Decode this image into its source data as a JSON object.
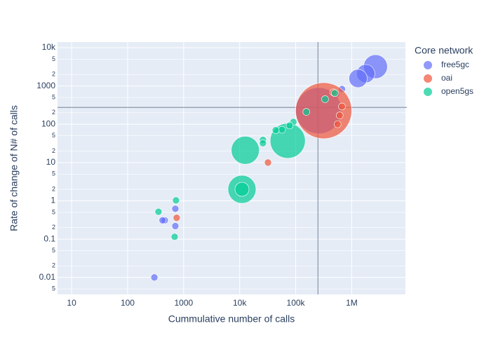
{
  "chart_data": {
    "type": "scatter",
    "x_label": "Cummulative number of calls",
    "y_label": "Rate of change of N# of calls",
    "x_log": true,
    "y_log": true,
    "grid": true,
    "legend_title": "Core network",
    "legend_position": "right",
    "xlim": [
      5.6,
      9100000
    ],
    "ylim": [
      0.0036,
      14000
    ],
    "xticks": [
      10,
      100,
      1000,
      {
        "value": 10000,
        "label": "10k"
      },
      {
        "value": 100000,
        "label": "100k"
      },
      {
        "value": 1000000,
        "label": "1M"
      }
    ],
    "yticks": [
      {
        "value": 10000,
        "label": "10k"
      },
      {
        "value": 5000,
        "label": "5"
      },
      {
        "value": 2000,
        "label": "2"
      },
      1000,
      {
        "value": 500,
        "label": "5"
      },
      {
        "value": 200,
        "label": "2"
      },
      100,
      {
        "value": 50,
        "label": "5"
      },
      {
        "value": 20,
        "label": "2"
      },
      10,
      {
        "value": 5,
        "label": "5"
      },
      {
        "value": 2,
        "label": "2"
      },
      1,
      {
        "value": 0.5,
        "label": "5"
      },
      {
        "value": 0.2,
        "label": "2"
      },
      0.1,
      {
        "value": 0.05,
        "label": "5"
      },
      {
        "value": 0.02,
        "label": "2"
      },
      0.01,
      {
        "value": 0.005,
        "label": "5"
      }
    ],
    "vline": 250000,
    "hline": 275,
    "series": [
      {
        "name": "free5gc",
        "color": "#636efa",
        "x": [
          2660000,
          1780000,
          1300000,
          670000,
          530000,
          257000,
          710,
          460,
          420,
          710,
          300
        ],
        "y": [
          3200,
          2100,
          1570,
          830,
          600,
          226,
          0.62,
          0.31,
          0.31,
          0.22,
          0.01
        ],
        "sizes": [
          34,
          26,
          26,
          10,
          10,
          66,
          10,
          10,
          10,
          10,
          10
        ]
      },
      {
        "name": "oai",
        "color": "#ef553b",
        "x": [
          316000,
          670000,
          610000,
          560000,
          470000,
          32000,
          750
        ],
        "y": [
          226,
          290,
          170,
          100,
          680,
          10,
          0.36
        ],
        "sizes": [
          80,
          10,
          10,
          10,
          10,
          10,
          10
        ]
      },
      {
        "name": "open5gs",
        "color": "#00cc96",
        "x": [
          72000,
          12600,
          11000,
          11000,
          500000,
          335000,
          155000,
          91000,
          78000,
          57000,
          44000,
          26000,
          26000,
          730,
          355,
          690
        ],
        "y": [
          37,
          21,
          2.0,
          2.0,
          650,
          450,
          210,
          115,
          93,
          72,
          70,
          39,
          32,
          1.03,
          0.52,
          0.115
        ],
        "sizes": [
          50,
          40,
          40,
          20,
          10,
          10,
          10,
          10,
          10,
          10,
          10,
          10,
          10,
          10,
          10,
          10
        ]
      }
    ]
  }
}
